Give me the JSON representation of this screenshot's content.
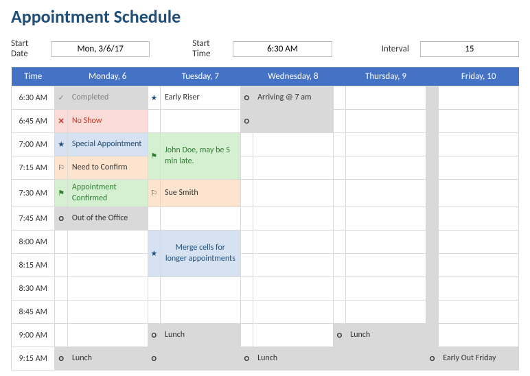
{
  "title": "Appointment Schedule",
  "controls": {
    "start_date_label": "Start Date",
    "start_date_value": "Mon, 3/6/17",
    "start_time_label": "Start Time",
    "start_time_value": "6:30 AM",
    "interval_label": "Interval",
    "interval_value": "15"
  },
  "headers": {
    "time": "Time",
    "days": [
      "Monday, 6",
      "Tuesday, 7",
      "Wednesday, 8",
      "Thursday, 9",
      "Friday, 10"
    ]
  },
  "times": [
    "6:30 AM",
    "6:45 AM",
    "7:00 AM",
    "7:15 AM",
    "7:30 AM",
    "7:45 AM",
    "8:00 AM",
    "8:15 AM",
    "8:30 AM",
    "8:45 AM",
    "9:00 AM",
    "9:15 AM"
  ],
  "icons": {
    "check": "✓",
    "x": "✕",
    "star": "★",
    "flag": "⚑",
    "flag_outline": "⚐",
    "circle": "O"
  },
  "cells": {
    "mon_0": "Completed",
    "mon_1": "No Show",
    "mon_2": "Special Appointment",
    "mon_3": "Need to Confirm",
    "mon_4": "Appointment Confirmed",
    "mon_5": "Out of the Office",
    "mon_11": "Lunch",
    "tue_0": "Early Riser",
    "tue_2": "John Doe, may be 5 min late.",
    "tue_4": "Sue Smith",
    "tue_6": "Merge cells for longer appointments",
    "tue_10": "Lunch",
    "wed_0": "Arriving @ 7 am",
    "wed_11": "Lunch",
    "thu_10": "Lunch",
    "fri_11": "Early Out Friday"
  }
}
